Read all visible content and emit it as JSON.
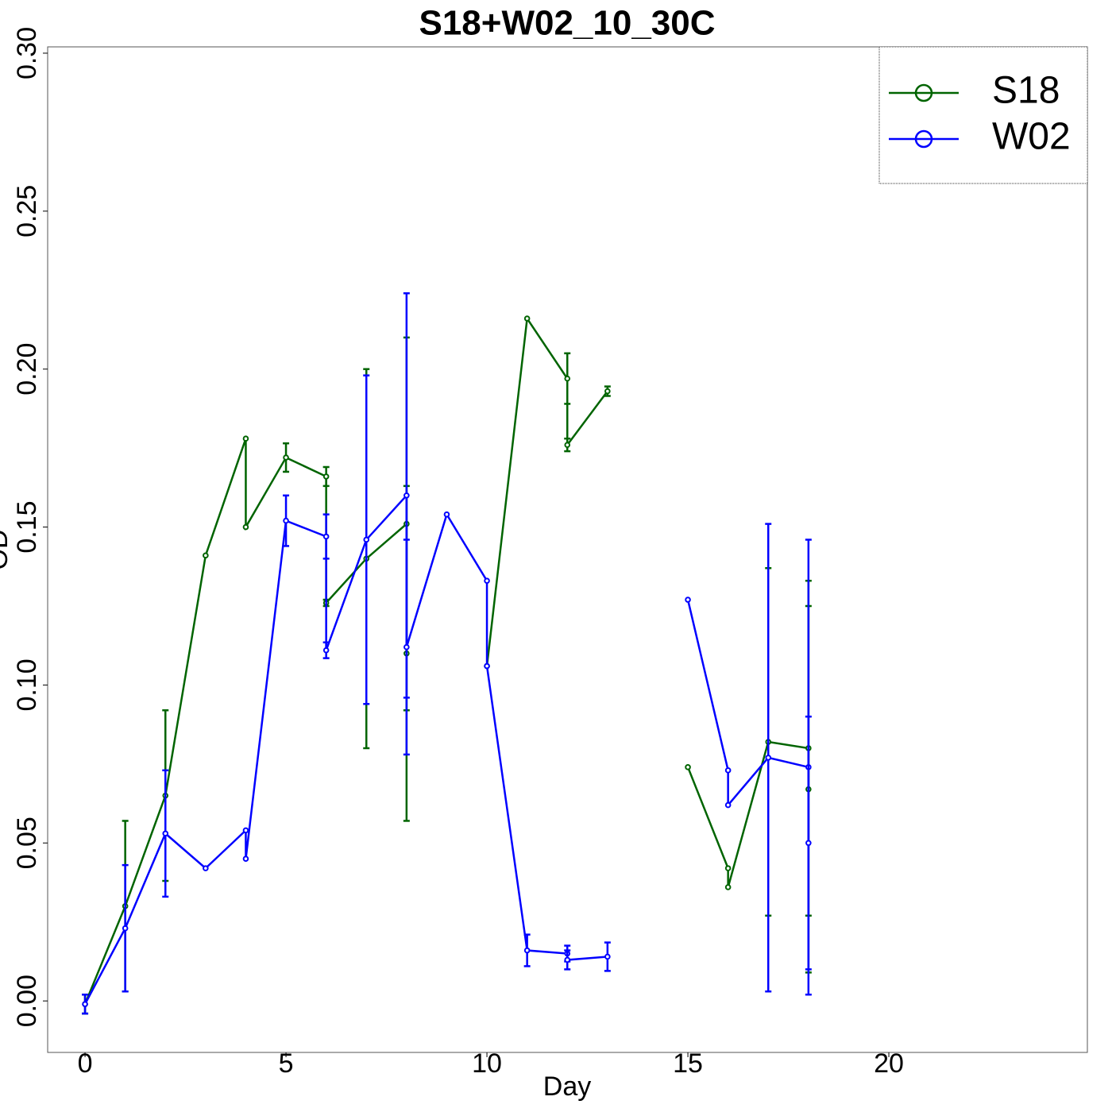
{
  "chart_data": {
    "type": "line",
    "title": "S18+W02_10_30C",
    "x_label": "Day",
    "y_label": "OD",
    "xlim": [
      -0.93,
      24.94
    ],
    "ylim": [
      -0.0163,
      0.302
    ],
    "xticks": [
      0,
      5,
      10,
      15,
      20
    ],
    "yticks": [
      {
        "value": 0,
        "label": "0.00"
      },
      {
        "value": 0.05,
        "label": "0.05"
      },
      {
        "value": 0.1,
        "label": "0.10"
      },
      {
        "value": 0.15,
        "label": "0.15"
      },
      {
        "value": 0.2,
        "label": "0.20"
      },
      {
        "value": 0.25,
        "label": "0.25"
      },
      {
        "value": 0.3,
        "label": "0.30"
      }
    ],
    "legend": "top-right",
    "series": [
      {
        "name": "S18",
        "color": "#006400",
        "x": [
          0,
          1,
          2,
          3,
          4,
          4,
          5,
          6,
          6,
          7,
          8,
          8,
          9,
          10,
          11,
          12,
          12,
          13,
          14,
          15,
          16,
          16,
          17,
          18,
          18
        ],
        "values": [
          -0.001,
          0.03,
          0.065,
          0.141,
          0.178,
          0.15,
          0.172,
          0.166,
          0.126,
          0.14,
          0.151,
          0.11,
          null,
          0.106,
          0.216,
          0.197,
          0.176,
          0.193,
          null,
          0.074,
          0.042,
          0.036,
          0.082,
          0.08,
          0.067
        ],
        "errors": [
          0.003,
          0.027,
          0.027,
          null,
          null,
          null,
          0.0045,
          0.003,
          0.001,
          0.06,
          0.059,
          0.053,
          null,
          null,
          null,
          0.008,
          0.002,
          0.0015,
          null,
          null,
          null,
          null,
          0.055,
          0.053,
          0.058
        ]
      },
      {
        "name": "W02",
        "color": "#0000ff",
        "x": [
          0,
          1,
          2,
          3,
          4,
          4,
          5,
          6,
          6,
          7,
          8,
          8,
          9,
          10,
          10,
          11,
          12,
          12,
          13,
          14,
          15,
          16,
          16,
          17,
          18,
          18
        ],
        "values": [
          -0.001,
          0.023,
          0.053,
          0.042,
          0.054,
          0.045,
          0.152,
          0.147,
          0.111,
          0.146,
          0.16,
          0.112,
          0.154,
          0.133,
          0.106,
          0.016,
          0.015,
          0.013,
          0.014,
          null,
          0.127,
          0.073,
          0.062,
          0.077,
          0.074,
          0.05
        ],
        "errors": [
          0.003,
          0.02,
          0.02,
          null,
          null,
          null,
          0.008,
          0.007,
          0.0025,
          0.052,
          0.064,
          0.034,
          null,
          null,
          null,
          0.005,
          0.0025,
          0.003,
          0.0045,
          null,
          null,
          null,
          null,
          0.074,
          0.072,
          0.04
        ]
      }
    ]
  }
}
